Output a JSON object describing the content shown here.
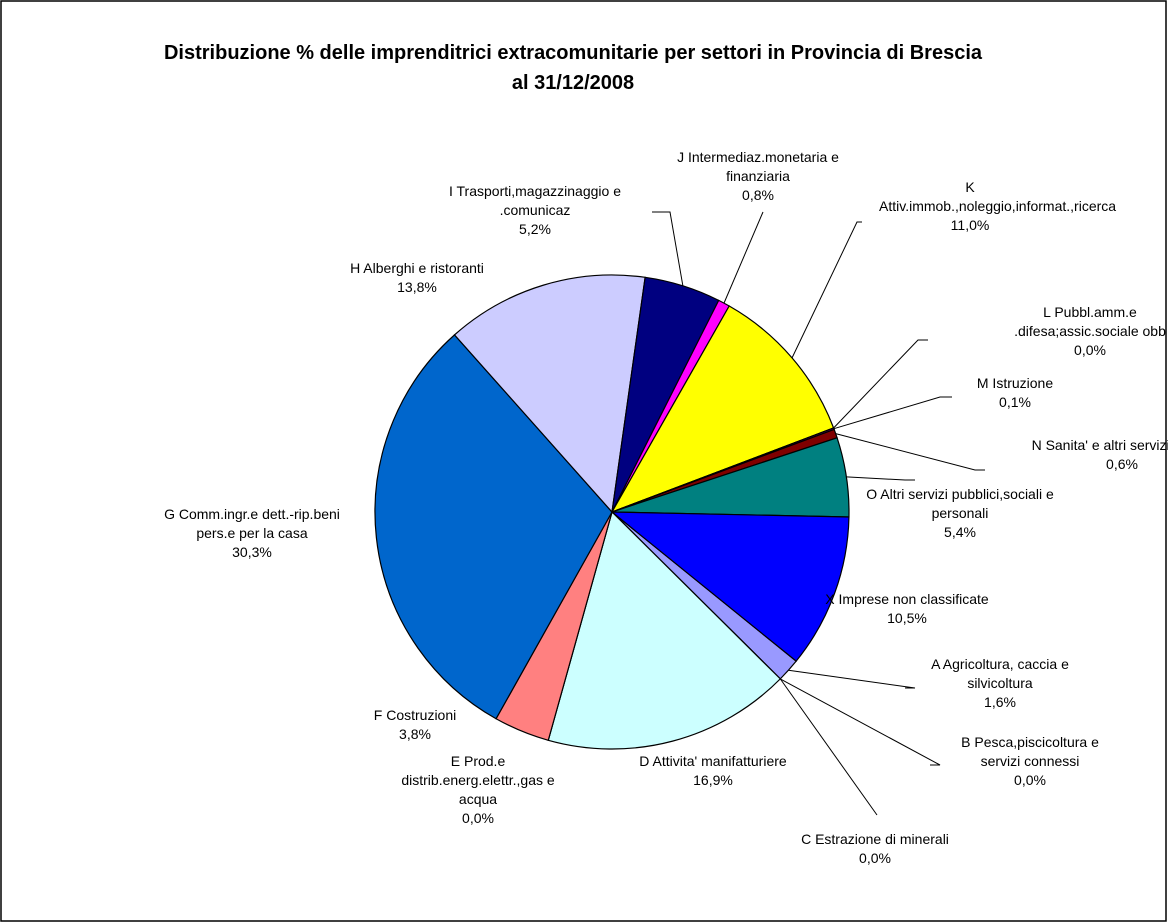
{
  "chart_data": {
    "type": "pie",
    "title": "Distribuzione % delle imprenditrici extracomunitarie per settori in Provincia di Brescia al 31/12/2008",
    "start_angle": 129,
    "categories": [
      "A Agricoltura, caccia e silvicoltura",
      "B Pesca,piscicoltura e servizi connessi",
      "C Estrazione di minerali",
      "D Attivita' manifatturiere",
      "E Prod.e distrib.energ.elettr.,gas e acqua",
      "F Costruzioni",
      "G Comm.ingr.e dett.-rip.beni pers.e per la casa",
      "H Alberghi e ristoranti",
      "I Trasporti,magazzinaggio e .comunicaz",
      "J Intermediaz.monetaria e finanziaria",
      "K Attiv.immob.,noleggio,informat.,ricerca",
      "L Pubbl.amm.e .difesa;assic.sociale obb",
      "M Istruzione",
      "N Sanita' e altri servizi sociali",
      "O Altri servizi pubblici,sociali e personali",
      "X Imprese non classificate"
    ],
    "values": [
      1.6,
      0.0,
      0.0,
      16.9,
      0.0,
      3.8,
      30.3,
      13.8,
      5.2,
      0.8,
      11.0,
      0.0,
      0.1,
      0.6,
      5.4,
      10.5
    ],
    "value_labels": [
      "1,6%",
      "0,0%",
      "0,0%",
      "16,9%",
      "0,0%",
      "3,8%",
      "30,3%",
      "13,8%",
      "5,2%",
      "0,8%",
      "11,0%",
      "0,0%",
      "0,1%",
      "0,6%",
      "5,4%",
      "10,5%"
    ],
    "colors": [
      "#9999ff",
      "#993366",
      "#ffffcc",
      "#ccffff",
      "#660066",
      "#ff8080",
      "#0066cc",
      "#ccccff",
      "#000080",
      "#ff00ff",
      "#ffff00",
      "#00ffff",
      "#800080",
      "#800000",
      "#008080",
      "#0000ff"
    ]
  }
}
